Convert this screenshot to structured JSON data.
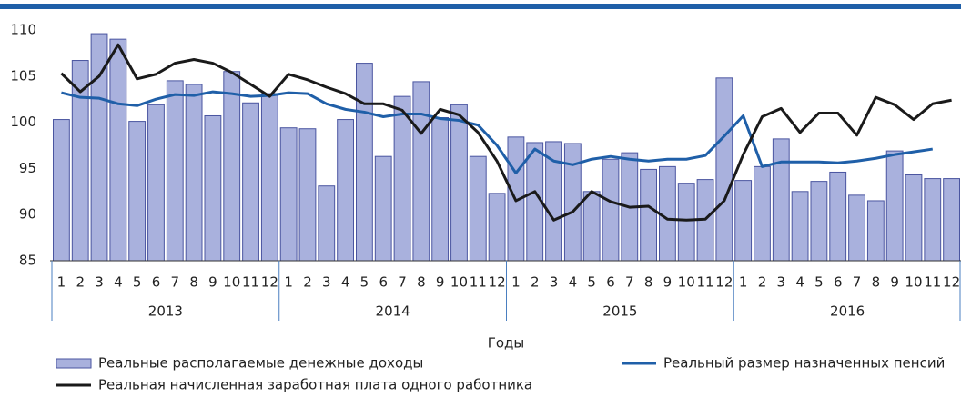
{
  "chart_data": {
    "type": "bar_line",
    "x_label": "Годы",
    "categories": [
      "1",
      "2",
      "3",
      "4",
      "5",
      "6",
      "7",
      "8",
      "9",
      "10",
      "11",
      "12",
      "1",
      "2",
      "3",
      "4",
      "5",
      "6",
      "7",
      "8",
      "9",
      "10",
      "11",
      "12",
      "1",
      "2",
      "3",
      "4",
      "5",
      "6",
      "7",
      "8",
      "9",
      "10",
      "11",
      "12",
      "1",
      "2",
      "3",
      "4",
      "5",
      "6",
      "7",
      "8",
      "9",
      "10",
      "11",
      "12"
    ],
    "year_groups": [
      "2013",
      "2014",
      "2015",
      "2016"
    ],
    "ylim": [
      85,
      110
    ],
    "yticks": [
      85,
      90,
      95,
      100,
      105,
      110
    ],
    "grid": false,
    "series": [
      {
        "name": "Реальные располагаемые денежные доходы",
        "kind": "bar",
        "color": "#a9b1dd",
        "values": [
          100.3,
          106.7,
          109.6,
          109.0,
          100.1,
          101.9,
          104.5,
          104.1,
          100.7,
          105.5,
          102.1,
          103.1,
          99.4,
          99.3,
          93.1,
          100.3,
          106.4,
          96.3,
          102.8,
          104.4,
          100.5,
          101.9,
          96.3,
          92.3,
          98.4,
          97.8,
          97.9,
          97.7,
          92.5,
          96.0,
          96.7,
          94.9,
          95.2,
          93.4,
          93.8,
          104.8,
          93.7,
          95.2,
          98.2,
          92.5,
          93.6,
          94.6,
          92.1,
          91.5,
          96.9,
          94.3,
          93.9,
          93.9
        ]
      },
      {
        "name": "Реальный размер назначенных пенсий",
        "kind": "line",
        "color": "#1f5fa8",
        "values": [
          103.2,
          102.7,
          102.6,
          102.0,
          101.8,
          102.5,
          103.0,
          102.9,
          103.3,
          103.1,
          102.8,
          102.9,
          103.2,
          103.1,
          102.0,
          101.4,
          101.1,
          100.6,
          100.9,
          100.9,
          100.4,
          100.2,
          99.7,
          97.5,
          94.5,
          97.1,
          95.8,
          95.4,
          96.0,
          96.3,
          96.0,
          95.8,
          96.0,
          96.0,
          96.4,
          98.5,
          100.7,
          95.2,
          95.7,
          95.7,
          95.7,
          95.6,
          95.8,
          96.1,
          96.5,
          96.8,
          97.1,
          null
        ]
      },
      {
        "name": "Реальная начисленная заработная плата одного работника",
        "kind": "line",
        "color": "#1a1a1a",
        "values": [
          105.3,
          103.3,
          105.0,
          108.4,
          104.7,
          105.2,
          106.4,
          106.8,
          106.4,
          105.4,
          104.1,
          102.8,
          105.2,
          104.6,
          103.8,
          103.1,
          102.0,
          102.0,
          101.3,
          98.8,
          101.4,
          100.8,
          98.9,
          95.8,
          91.5,
          92.5,
          89.4,
          90.3,
          92.5,
          91.4,
          90.8,
          90.9,
          89.5,
          89.4,
          89.5,
          91.5,
          96.5,
          100.6,
          101.5,
          98.9,
          101.0,
          101.0,
          98.6,
          102.7,
          101.9,
          100.3,
          102.0,
          102.4
        ]
      }
    ]
  }
}
